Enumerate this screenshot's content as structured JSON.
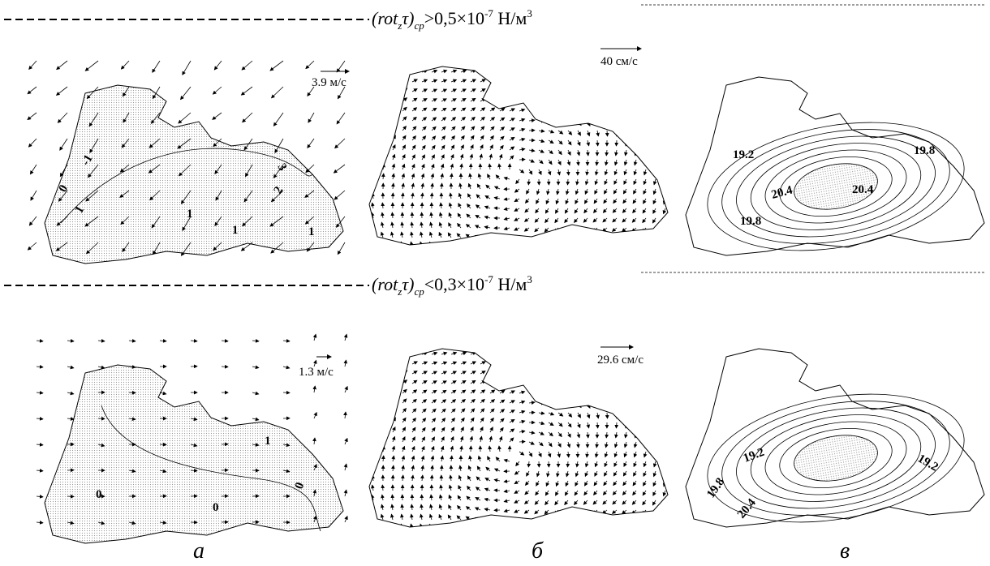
{
  "rows": [
    {
      "header": {
        "parts": [
          "(rot",
          "z",
          "τ)",
          "ср",
          ">0,5×10",
          "-7",
          " Н/м",
          "3"
        ]
      },
      "wind": {
        "scale": "3.9 м/с",
        "contour_labels": [
          "-1",
          "0",
          "1",
          "1",
          "1",
          "1",
          "2",
          "3"
        ]
      },
      "current": {
        "scale": "40 см/с"
      },
      "level": {
        "contour_labels": [
          "19.2",
          "19.8",
          "20.4",
          "20.4",
          "19.8"
        ]
      }
    },
    {
      "header": {
        "parts": [
          "(rot",
          "z",
          "τ)",
          "ср",
          "<0,3×10",
          "-7",
          " Н/м",
          "3"
        ]
      },
      "wind": {
        "scale": "1.3 м/с",
        "contour_labels": [
          "1",
          "0",
          "0",
          "0"
        ]
      },
      "current": {
        "scale": "29.6 см/с"
      },
      "level": {
        "contour_labels": [
          "19.8",
          "19.2",
          "19.2",
          "20.4"
        ]
      }
    }
  ],
  "panel_letters": [
    "а",
    "б",
    "в"
  ]
}
